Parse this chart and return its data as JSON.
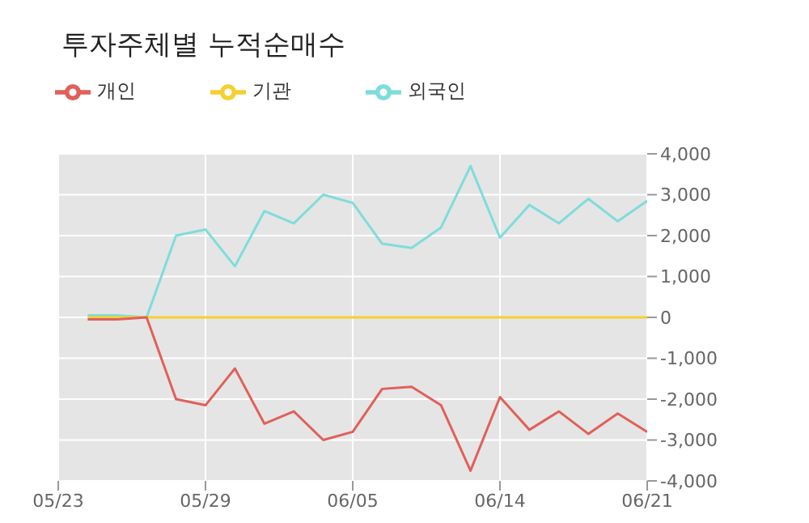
{
  "chart_data": {
    "type": "line",
    "title": "투자주체별 누적순매수",
    "categories": [
      "05/23",
      null,
      null,
      null,
      null,
      "05/29",
      null,
      null,
      null,
      null,
      "06/05",
      null,
      null,
      null,
      null,
      "06/14",
      null,
      null,
      null,
      null,
      "06/21"
    ],
    "series": [
      {
        "name": "외국인",
        "color": "#7fdcdc",
        "values": [
          null,
          50,
          50,
          0,
          2000,
          2150,
          1250,
          2600,
          2300,
          3000,
          2800,
          1800,
          1700,
          2200,
          3700,
          1950,
          2750,
          2300,
          2900,
          2350,
          2850
        ]
      },
      {
        "name": "기관",
        "color": "#f5d033",
        "values": [
          null,
          0,
          0,
          0,
          0,
          0,
          0,
          0,
          0,
          0,
          0,
          0,
          0,
          0,
          0,
          0,
          0,
          0,
          0,
          0,
          0
        ]
      },
      {
        "name": "개인",
        "color": "#e0605a",
        "values": [
          null,
          -50,
          -50,
          0,
          -2000,
          -2150,
          -1250,
          -2600,
          -2300,
          -3000,
          -2800,
          -1750,
          -1700,
          -2150,
          -3750,
          -1950,
          -2750,
          -2300,
          -2850,
          -2350,
          -2800
        ]
      }
    ],
    "ylim": [
      -4000,
      4000
    ],
    "yticks": [
      {
        "value": -4000,
        "label": "-4,000"
      },
      {
        "value": -3000,
        "label": "-3,000"
      },
      {
        "value": -2000,
        "label": "-2,000"
      },
      {
        "value": -1000,
        "label": "-1,000"
      },
      0,
      {
        "value": 1000,
        "label": "1,000"
      },
      {
        "value": 2000,
        "label": "2,000"
      },
      {
        "value": 3000,
        "label": "3,000"
      },
      {
        "value": 4000,
        "label": "4,000"
      }
    ],
    "grid": true,
    "legend": "top left",
    "marker": "none",
    "line_style": "solid"
  }
}
